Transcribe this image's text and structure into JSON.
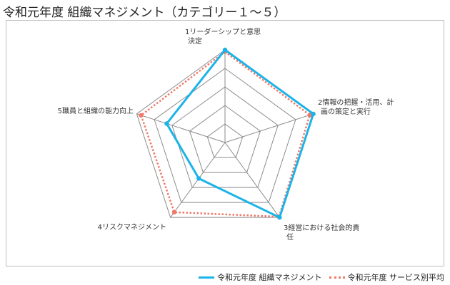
{
  "title": "令和元年度 組織マネジメント（カテゴリー１～５）",
  "chart_data": {
    "type": "radar",
    "categories": [
      [
        "1リーダーシップと意思",
        "決定"
      ],
      [
        "2情報の把握・活用、計",
        "画の策定と実行"
      ],
      [
        "3経営における社会的責",
        "任"
      ],
      [
        "4リスクマネジメント"
      ],
      [
        "5職員と組織の能力向上"
      ]
    ],
    "rmax": 5,
    "rings": [
      1,
      2,
      3,
      4,
      5
    ],
    "grid": true,
    "legend_position": "bottom-right",
    "series": [
      {
        "name": "令和元年度 組織マネジメント",
        "color": "#1ab4e8",
        "style": "solid",
        "values": [
          5,
          5,
          5,
          2.4,
          3.3
        ]
      },
      {
        "name": "令和元年度 サービス別平均",
        "color": "#f07867",
        "style": "dotted",
        "values": [
          4.9,
          4.8,
          4.95,
          4.65,
          4.75
        ]
      }
    ]
  }
}
